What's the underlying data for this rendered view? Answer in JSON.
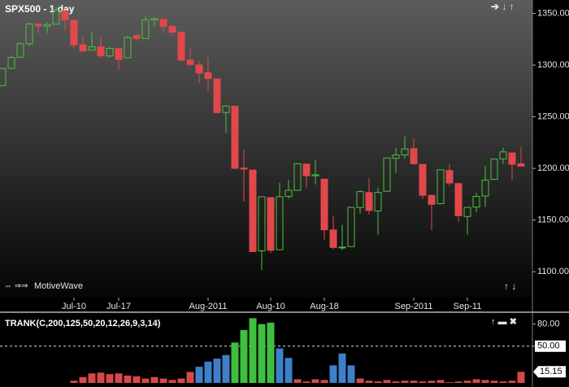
{
  "chart_data": [
    {
      "type": "candlestick",
      "title": "SPX500 - 1 day",
      "annotations": [
        "MotiveWave"
      ],
      "categories": [
        null,
        null,
        null,
        null,
        null,
        null,
        null,
        null,
        "Jul-10",
        null,
        null,
        null,
        null,
        "Jul-17",
        null,
        null,
        null,
        null,
        null,
        null,
        null,
        null,
        null,
        "Aug-2011",
        null,
        null,
        null,
        null,
        null,
        null,
        "Aug-10",
        null,
        null,
        null,
        null,
        null,
        "Aug-18",
        null,
        null,
        null,
        null,
        null,
        null,
        null,
        null,
        null,
        "Sep-2011",
        null,
        null,
        null,
        null,
        null,
        "Sep-11",
        null,
        null,
        null,
        null,
        null,
        null
      ],
      "open": [
        1280.21,
        1296.85,
        1307.64,
        1320.64,
        1339.59,
        1337.56,
        1339.62,
        1352.39,
        1343.31,
        1319.61,
        1314.45,
        1317.74,
        1308.87,
        1315.94,
        1307.07,
        1328.66,
        1325.65,
        1343.8,
        1344.32,
        1337.39,
        1331.91,
        1304.84,
        1300.12,
        1292.59,
        1286.56,
        1254.25,
        1260.23,
        1200.28,
        1198.48,
        1120.23,
        1171.77,
        1121.3,
        1172.87,
        1178.86,
        1204.22,
        1192.89,
        1189.62,
        1140.47,
        1123.55,
        1124.36,
        1162.16,
        1176.69,
        1158.85,
        1177.91,
        1209.76,
        1213,
        1219.12,
        1203.9,
        1173.97,
        1165.85,
        1197.98,
        1185.37,
        1153.5,
        1162.59,
        1173.32,
        1189.44,
        1209.21,
        1214.99,
        1204.5
      ],
      "high": [
        1296.8,
        1309.21,
        1321.97,
        1341.01,
        1340.89,
        1340.94,
        1356.48,
        1352.39,
        1343.31,
        1327.17,
        1331.48,
        1326.88,
        1317.7,
        1315.94,
        1328.14,
        1330.43,
        1347,
        1346.1,
        1344.32,
        1338.51,
        1331.91,
        1316.32,
        1304.16,
        1307.38,
        1286.56,
        1261.2,
        1260.23,
        1218.11,
        1198.48,
        1172.88,
        1171.77,
        1186.29,
        1189.04,
        1204.49,
        1204.22,
        1208.47,
        1189.62,
        1154.54,
        1145.49,
        1162.35,
        1178.56,
        1190.68,
        1181.23,
        1210.28,
        1220.1,
        1230.71,
        1229.29,
        1203.9,
        1173.97,
        1198.62,
        1204.4,
        1185.37,
        1162.52,
        1176.41,
        1202.38,
        1209.11,
        1220.06,
        1214.99,
        1220.39
      ],
      "low": [
        1280.21,
        1296.85,
        1307.64,
        1318.18,
        1330.92,
        1330.92,
        1339.62,
        1333.71,
        1316.42,
        1313.33,
        1314.45,
        1306.51,
        1307.35,
        1295.92,
        1307.07,
        1323.65,
        1325.65,
        1336.95,
        1331.09,
        1329.1,
        1303.49,
        1299.16,
        1282.86,
        1274.73,
        1254.03,
        1234.56,
        1199.54,
        1168.09,
        1119.28,
        1101.54,
        1118.01,
        1121.3,
        1170.74,
        1178.86,
        1180.53,
        1184.36,
        1131.03,
        1122.05,
        1121.09,
        1124.36,
        1156.3,
        1155.47,
        1135.91,
        1177.91,
        1195.77,
        1209.35,
        1203.85,
        1170.56,
        1140.13,
        1165.85,
        1183.34,
        1148.37,
        1136.07,
        1157.44,
        1162.73,
        1189.44,
        1204.46,
        1188.36,
        1201.8
      ],
      "close": [
        1296.67,
        1307.41,
        1320.64,
        1339.67,
        1337.88,
        1339.22,
        1353.22,
        1343.8,
        1319.49,
        1313.64,
        1317.72,
        1308.87,
        1316.14,
        1305.44,
        1326.73,
        1325.84,
        1343.8,
        1345.02,
        1337.43,
        1331.94,
        1304.89,
        1300.67,
        1292.28,
        1286.94,
        1254.05,
        1260.34,
        1200.07,
        1199.38,
        1119.46,
        1172.53,
        1120.76,
        1172.64,
        1178.81,
        1204.49,
        1192.76,
        1193.89,
        1140.65,
        1123.53,
        1123.82,
        1162.35,
        1177.6,
        1159.27,
        1176.8,
        1210.08,
        1212.92,
        1218.89,
        1204.42,
        1173.97,
        1165.24,
        1198.62,
        1185.9,
        1154.23,
        1162.27,
        1172.87,
        1188.68,
        1209.11,
        1216.01,
        1204.09,
        1202.09
      ],
      "up_color": "#4cc23a",
      "down_color": "#e0484c",
      "ylim": [
        1075,
        1363
      ],
      "yticks": [
        {
          "value": 1100,
          "label": "1100.00"
        },
        {
          "value": 1150,
          "label": "1150.00"
        },
        {
          "value": 1200,
          "label": "1200.00"
        },
        {
          "value": 1250,
          "label": "1250.00"
        },
        {
          "value": 1300,
          "label": "1300.00"
        },
        {
          "value": 1350,
          "label": "1350.00"
        }
      ]
    },
    {
      "type": "bar",
      "title": "TRANK(C,200,125,50,20,12,26,9,3,14)",
      "values": [
        0,
        0,
        0,
        0,
        0,
        0,
        0,
        0,
        3,
        8,
        13,
        14,
        12,
        13,
        10,
        9,
        6,
        8,
        6,
        4,
        6,
        15,
        22,
        29,
        33,
        38,
        55,
        72,
        88,
        80,
        82,
        47,
        34,
        5,
        2,
        5,
        4,
        24,
        40,
        24,
        6,
        3,
        2,
        4,
        2,
        3,
        3,
        2,
        3,
        4,
        1,
        2,
        3,
        5,
        4,
        3,
        2,
        3,
        15.15
      ],
      "colors": [
        "#d84848",
        "#d84848",
        "#d84848",
        "#d84848",
        "#d84848",
        "#d84848",
        "#d84848",
        "#d84848",
        "#d84848",
        "#d84848",
        "#d84848",
        "#d84848",
        "#d84848",
        "#d84848",
        "#d84848",
        "#d84848",
        "#d84848",
        "#d84848",
        "#d84848",
        "#d84848",
        "#d84848",
        "#d84848",
        "#3d80c8",
        "#3d80c8",
        "#3d80c8",
        "#3d80c8",
        "#3fbf3f",
        "#3fbf3f",
        "#3fbf3f",
        "#3fbf3f",
        "#3fbf3f",
        "#3d80c8",
        "#3d80c8",
        "#d84848",
        "#d84848",
        "#d84848",
        "#d84848",
        "#3d80c8",
        "#3d80c8",
        "#3d80c8",
        "#d84848",
        "#d84848",
        "#d84848",
        "#d84848",
        "#d84848",
        "#d84848",
        "#d84848",
        "#d84848",
        "#d84848",
        "#d84848",
        "#d84848",
        "#d84848",
        "#d84848",
        "#d84848",
        "#d84848",
        "#d84848",
        "#d84848",
        "#d84848",
        "#d84848"
      ],
      "ylim": [
        0,
        94
      ],
      "yticks": [
        {
          "value": 80,
          "label": "80.00"
        },
        {
          "value": 50,
          "label": "50.00"
        }
      ],
      "reference_line": 50
    }
  ]
}
